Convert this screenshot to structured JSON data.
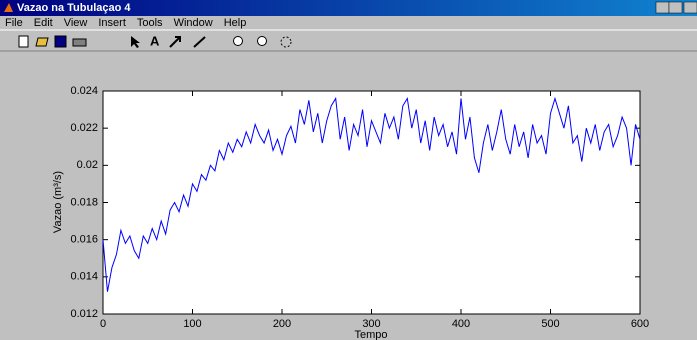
{
  "window": {
    "title": "Vazao na Tubulaçao 4",
    "menu": [
      "File",
      "Edit",
      "View",
      "Insert",
      "Tools",
      "Window",
      "Help"
    ]
  },
  "chart_data": {
    "type": "line",
    "ylabel": "Vazao (m³/s)",
    "xlabel": "Tempo",
    "xlim": [
      0,
      600
    ],
    "xticks": [
      0,
      100,
      200,
      300,
      400,
      500,
      600
    ],
    "ylim": [
      0.012,
      0.024
    ],
    "yticks": [
      0.012,
      0.014,
      0.016,
      0.018,
      0.02,
      0.022,
      0.024
    ],
    "grid": false,
    "x": [
      0,
      5,
      10,
      15,
      20,
      25,
      30,
      35,
      40,
      45,
      50,
      55,
      60,
      65,
      70,
      75,
      80,
      85,
      90,
      95,
      100,
      105,
      110,
      115,
      120,
      125,
      130,
      135,
      140,
      145,
      150,
      155,
      160,
      165,
      170,
      175,
      180,
      185,
      190,
      195,
      200,
      205,
      210,
      215,
      220,
      225,
      230,
      235,
      240,
      245,
      250,
      255,
      260,
      265,
      270,
      275,
      280,
      285,
      290,
      295,
      300,
      305,
      310,
      315,
      320,
      325,
      330,
      335,
      340,
      345,
      350,
      355,
      360,
      365,
      370,
      375,
      380,
      385,
      390,
      395,
      400,
      405,
      410,
      415,
      420,
      425,
      430,
      435,
      440,
      445,
      450,
      455,
      460,
      465,
      470,
      475,
      480,
      485,
      490,
      495,
      500,
      505,
      510,
      515,
      520,
      525,
      530,
      535,
      540,
      545,
      550,
      555,
      560,
      565,
      570,
      575,
      580,
      585,
      590,
      595,
      600
    ],
    "series": [
      {
        "color": "#0000ff",
        "values": [
          0.016,
          0.0132,
          0.0145,
          0.0152,
          0.0165,
          0.0158,
          0.0162,
          0.0154,
          0.015,
          0.0162,
          0.0158,
          0.0166,
          0.016,
          0.017,
          0.0163,
          0.0176,
          0.018,
          0.0175,
          0.0184,
          0.0178,
          0.019,
          0.0186,
          0.0195,
          0.0192,
          0.02,
          0.0197,
          0.0208,
          0.0203,
          0.0212,
          0.0207,
          0.0214,
          0.021,
          0.0218,
          0.0212,
          0.0222,
          0.0216,
          0.0212,
          0.0219,
          0.0208,
          0.0214,
          0.0206,
          0.0216,
          0.0221,
          0.0212,
          0.023,
          0.0222,
          0.0235,
          0.0218,
          0.0228,
          0.0212,
          0.0224,
          0.0232,
          0.0236,
          0.0214,
          0.0226,
          0.0208,
          0.0222,
          0.0216,
          0.023,
          0.021,
          0.0224,
          0.0218,
          0.0212,
          0.0228,
          0.022,
          0.0226,
          0.0214,
          0.0232,
          0.0236,
          0.022,
          0.023,
          0.0212,
          0.0224,
          0.0208,
          0.0226,
          0.0216,
          0.0222,
          0.021,
          0.0218,
          0.0206,
          0.0236,
          0.0214,
          0.0226,
          0.0204,
          0.0196,
          0.0212,
          0.0222,
          0.0208,
          0.0218,
          0.023,
          0.0214,
          0.0206,
          0.0222,
          0.021,
          0.0218,
          0.0204,
          0.0222,
          0.0212,
          0.0216,
          0.0206,
          0.0228,
          0.0236,
          0.0228,
          0.022,
          0.0232,
          0.0212,
          0.0216,
          0.0202,
          0.022,
          0.0212,
          0.0222,
          0.0208,
          0.0218,
          0.0222,
          0.021,
          0.0216,
          0.0226,
          0.022,
          0.02,
          0.0222,
          0.0214
        ]
      }
    ]
  }
}
